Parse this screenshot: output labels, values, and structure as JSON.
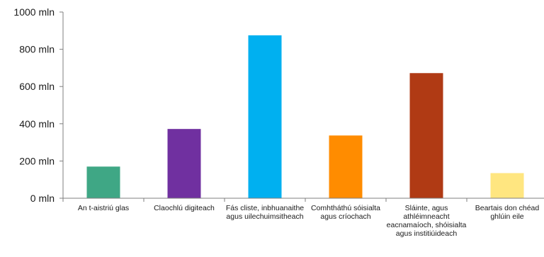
{
  "chart_data": {
    "type": "bar",
    "categories": [
      "An t-aistriú glas",
      "Claochlú digiteach",
      "Fás cliste, inbhuanaithe agus uilechuimsitheach",
      "Comhtháthú sóisialta agus críochach",
      "Sláinte, agus athléimneacht eacnamaíoch, shóisialta agus institiúideach",
      "Beartais don chéad ghlúin eile"
    ],
    "values": [
      170000000,
      372000000,
      875000000,
      337000000,
      672000000,
      135000000
    ],
    "colors": [
      "#3fa785",
      "#7030a0",
      "#00b0f0",
      "#ff8c00",
      "#b03a14",
      "#ffe680"
    ],
    "title": "",
    "xlabel": "",
    "ylabel": "",
    "ylim": [
      0,
      1000000000
    ],
    "yticks": [
      0,
      200000000,
      400000000,
      600000000,
      800000000,
      1000000000
    ],
    "ytick_labels": [
      "0 mln",
      "200 mln",
      "400 mln",
      "600 mln",
      "800 mln",
      "1000 mln"
    ],
    "grid": false,
    "legend": "none"
  }
}
